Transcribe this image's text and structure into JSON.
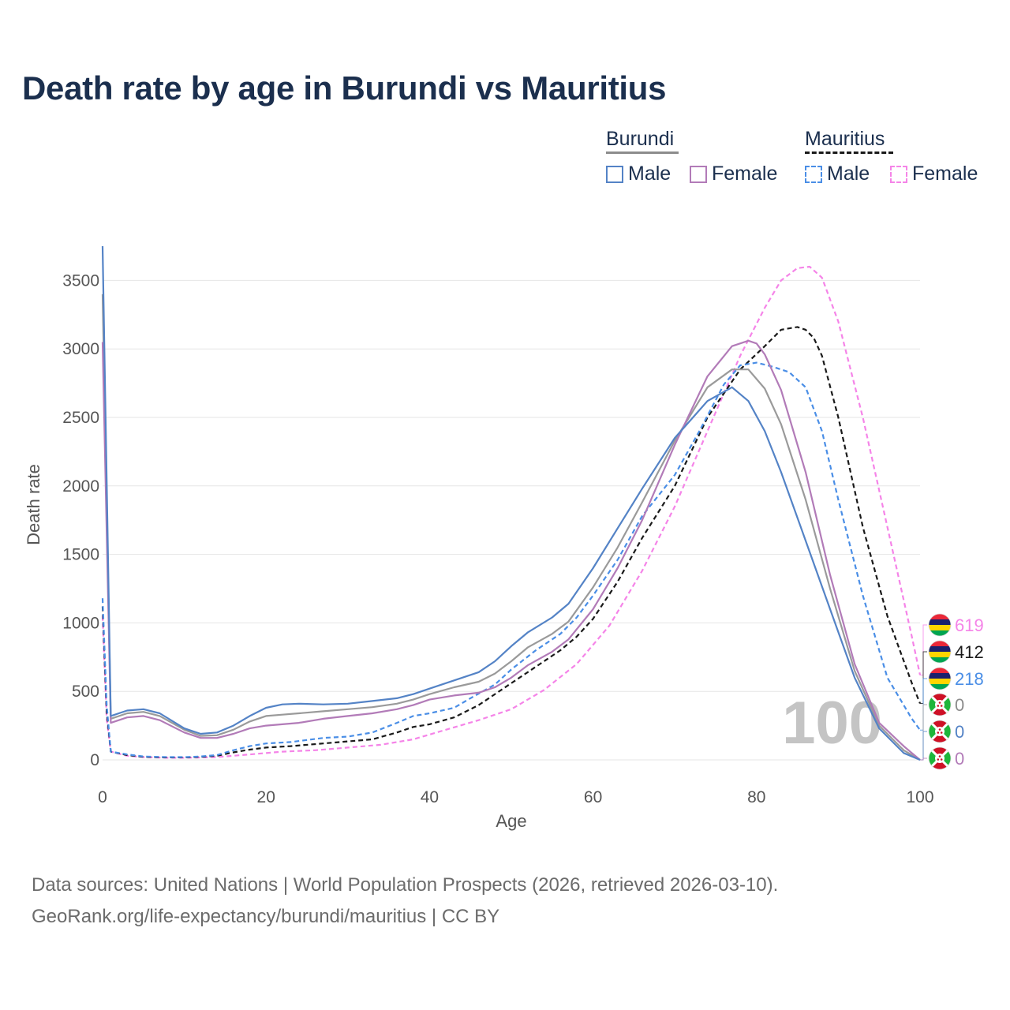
{
  "title": "Death rate by age in Burundi vs Mauritius",
  "legend": {
    "burundi": {
      "label": "Burundi",
      "male": "Male",
      "female": "Female"
    },
    "mauritius": {
      "label": "Mauritius",
      "male": "Male",
      "female": "Female"
    }
  },
  "footer": {
    "line1": "Data sources: United Nations | World Population Prospects (2026, retrieved 2026-03-10).",
    "line2": "GeoRank.org/life-expectancy/burundi/mauritius | CC BY"
  },
  "year_label": "100",
  "colors": {
    "burundi_male": "#5483c6",
    "burundi_female": "#b27bb8",
    "burundi_total": "#9a9a9a",
    "mauritius_male": "#4a8ee6",
    "mauritius_female": "#f584e8",
    "mauritius_total": "#1a1a1a",
    "title": "#1b2f4e"
  },
  "end_labels": [
    {
      "value": "619",
      "series": "mauritius_female",
      "flag": "mauritius"
    },
    {
      "value": "412",
      "series": "mauritius_total",
      "flag": "mauritius"
    },
    {
      "value": "218",
      "series": "mauritius_male",
      "flag": "mauritius"
    },
    {
      "value": "0",
      "series": "burundi_total",
      "flag": "burundi"
    },
    {
      "value": "0",
      "series": "burundi_male",
      "flag": "burundi"
    },
    {
      "value": "0",
      "series": "burundi_female",
      "flag": "burundi"
    }
  ],
  "chart_data": {
    "type": "line",
    "title": "Death rate by age in Burundi vs Mauritius",
    "xlabel": "Age",
    "ylabel": "Death rate",
    "xlim": [
      0,
      100
    ],
    "ylim": [
      0,
      3750
    ],
    "xticks": [
      0,
      20,
      40,
      60,
      80,
      100
    ],
    "yticks": [
      0,
      500,
      1000,
      1500,
      2000,
      2500,
      3000,
      3500
    ],
    "grid": true,
    "series": [
      {
        "name": "Burundi Male",
        "key": "burundi_male",
        "style": "solid",
        "x": [
          0,
          1,
          3,
          5,
          7,
          10,
          12,
          14,
          16,
          18,
          20,
          22,
          24,
          27,
          30,
          33,
          36,
          38,
          40,
          43,
          46,
          48,
          50,
          52,
          55,
          57,
          60,
          63,
          66,
          70,
          74,
          77,
          79,
          81,
          83,
          86,
          89,
          92,
          95,
          98,
          100
        ],
        "y": [
          3750,
          320,
          360,
          370,
          340,
          230,
          190,
          200,
          250,
          320,
          380,
          405,
          410,
          405,
          410,
          430,
          450,
          480,
          520,
          580,
          640,
          720,
          830,
          930,
          1040,
          1140,
          1400,
          1690,
          1980,
          2350,
          2620,
          2720,
          2620,
          2400,
          2100,
          1600,
          1100,
          600,
          230,
          50,
          0
        ]
      },
      {
        "name": "Burundi Female",
        "key": "burundi_female",
        "style": "solid",
        "x": [
          0,
          1,
          3,
          5,
          7,
          10,
          12,
          14,
          16,
          18,
          20,
          22,
          24,
          27,
          30,
          33,
          36,
          38,
          40,
          43,
          46,
          48,
          50,
          52,
          55,
          57,
          60,
          63,
          66,
          70,
          74,
          77,
          79,
          80,
          81,
          83,
          86,
          89,
          92,
          95,
          98,
          99,
          100
        ],
        "y": [
          3050,
          270,
          310,
          320,
          290,
          200,
          160,
          160,
          190,
          230,
          250,
          260,
          270,
          300,
          320,
          340,
          370,
          400,
          440,
          470,
          490,
          530,
          600,
          690,
          790,
          880,
          1100,
          1400,
          1750,
          2300,
          2800,
          3020,
          3060,
          3040,
          2960,
          2700,
          2100,
          1350,
          700,
          270,
          100,
          50,
          0
        ]
      },
      {
        "name": "Burundi Total",
        "key": "burundi_total",
        "style": "solid",
        "x": [
          0,
          1,
          3,
          5,
          7,
          10,
          12,
          14,
          16,
          18,
          20,
          22,
          24,
          27,
          30,
          33,
          36,
          38,
          40,
          43,
          46,
          48,
          50,
          52,
          55,
          57,
          60,
          63,
          66,
          70,
          74,
          77,
          79,
          81,
          83,
          86,
          89,
          92,
          95,
          98,
          100
        ],
        "y": [
          3400,
          300,
          340,
          350,
          320,
          220,
          175,
          180,
          220,
          280,
          320,
          330,
          340,
          355,
          370,
          385,
          410,
          440,
          480,
          530,
          570,
          630,
          720,
          820,
          920,
          1010,
          1260,
          1550,
          1880,
          2330,
          2720,
          2850,
          2850,
          2710,
          2450,
          1900,
          1250,
          650,
          250,
          70,
          0
        ]
      },
      {
        "name": "Mauritius Male",
        "key": "mauritius_male",
        "style": "dashed",
        "x": [
          0,
          0.5,
          1,
          3,
          5,
          8,
          10,
          12,
          14,
          16,
          18,
          20,
          23,
          27,
          30,
          33,
          36,
          38,
          40,
          43,
          45,
          48,
          50,
          53,
          56,
          58,
          60,
          63,
          66,
          70,
          73,
          76,
          78,
          80,
          82,
          84,
          86,
          88,
          90,
          93,
          96,
          99,
          100
        ],
        "y": [
          1180,
          400,
          60,
          40,
          25,
          20,
          20,
          25,
          35,
          70,
          100,
          120,
          130,
          160,
          170,
          200,
          270,
          320,
          340,
          380,
          450,
          550,
          660,
          800,
          920,
          1040,
          1200,
          1460,
          1780,
          2080,
          2400,
          2740,
          2880,
          2900,
          2870,
          2830,
          2720,
          2400,
          1900,
          1200,
          600,
          300,
          218
        ]
      },
      {
        "name": "Mauritius Female",
        "key": "mauritius_female",
        "style": "dashed",
        "x": [
          0,
          0.5,
          1,
          3,
          5,
          8,
          10,
          14,
          18,
          22,
          26,
          30,
          34,
          38,
          42,
          46,
          50,
          54,
          58,
          62,
          66,
          70,
          74,
          78,
          81,
          83,
          85,
          86.5,
          88,
          90,
          93,
          96,
          99,
          100
        ],
        "y": [
          1050,
          300,
          60,
          30,
          20,
          15,
          15,
          20,
          40,
          60,
          70,
          90,
          110,
          150,
          220,
          290,
          370,
          510,
          700,
          980,
          1380,
          1850,
          2400,
          2950,
          3300,
          3500,
          3590,
          3600,
          3520,
          3200,
          2500,
          1700,
          900,
          619
        ]
      },
      {
        "name": "Mauritius Total",
        "key": "mauritius_total",
        "style": "dashed",
        "x": [
          0,
          0.5,
          1,
          3,
          5,
          8,
          10,
          12,
          14,
          16,
          18,
          20,
          23,
          27,
          30,
          33,
          36,
          38,
          40,
          43,
          46,
          50,
          53,
          56,
          58,
          60,
          63,
          66,
          70,
          74,
          78,
          81,
          83,
          85,
          86,
          87,
          88,
          90,
          93,
          96,
          99,
          100
        ],
        "y": [
          1120,
          350,
          60,
          35,
          22,
          18,
          18,
          22,
          30,
          55,
          75,
          90,
          100,
          120,
          135,
          150,
          200,
          240,
          260,
          310,
          400,
          560,
          680,
          800,
          900,
          1030,
          1300,
          1620,
          2000,
          2500,
          2850,
          3020,
          3140,
          3160,
          3140,
          3080,
          2950,
          2500,
          1700,
          1050,
          560,
          412
        ]
      }
    ]
  }
}
